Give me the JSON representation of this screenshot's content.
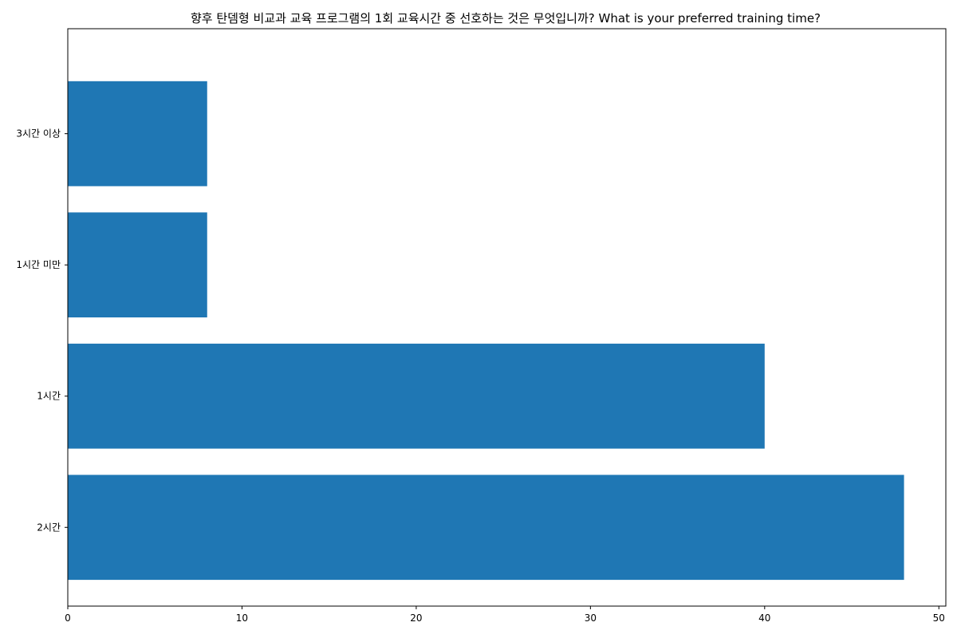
{
  "chart_data": {
    "type": "bar",
    "orientation": "horizontal",
    "title": "향후 탄뎀형 비교과 교육 프로그램의 1회 교육시간 중 선호하는 것은 무엇입니까? What is your preferred training time?",
    "categories": [
      "2시간",
      "1시간",
      "1시간 미만",
      "3시간 이상"
    ],
    "values": [
      48,
      40,
      8,
      8
    ],
    "xlim": [
      0,
      50.4
    ],
    "xticks": [
      0,
      10,
      20,
      30,
      40,
      50
    ],
    "xlabel": "",
    "ylabel": "",
    "grid": false,
    "bar_color": "#1f77b4"
  }
}
